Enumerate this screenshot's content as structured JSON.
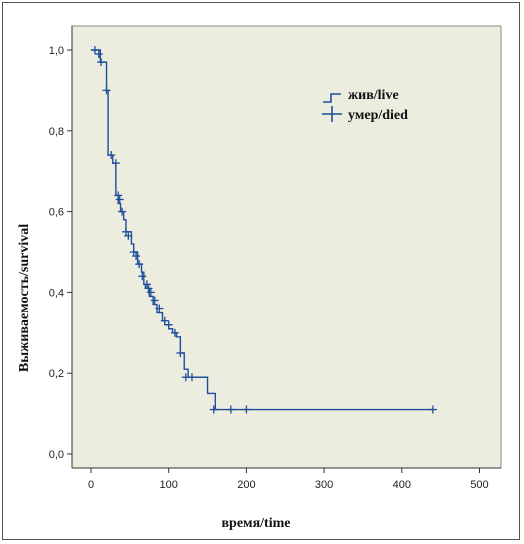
{
  "chart_data": {
    "type": "line",
    "subtype": "kaplan-meier",
    "xlabel": "время/time",
    "ylabel": "Выживаемость/survival",
    "xlim": [
      0,
      500
    ],
    "ylim": [
      0,
      1.0
    ],
    "x_ticks": [
      "0",
      "100",
      "200",
      "300",
      "400",
      "500"
    ],
    "x_tick_values": [
      0,
      100,
      200,
      300,
      400,
      500
    ],
    "y_ticks": [
      "0,0",
      "0,2",
      "0,4",
      "0,6",
      "0,8",
      "1,0"
    ],
    "y_tick_values": [
      0,
      0.2,
      0.4,
      0.6,
      0.8,
      1.0
    ],
    "grid": false,
    "legend_position": "top-right",
    "colors": {
      "series": "#1f4e9c",
      "plot_background": "#ececdf"
    },
    "series": [
      {
        "name": "жив/live",
        "role": "survival-step",
        "x": [
          0,
          10,
          12,
          20,
          22,
          28,
          32,
          35,
          38,
          42,
          45,
          52,
          55,
          60,
          65,
          68,
          70,
          75,
          80,
          85,
          92,
          95,
          100,
          105,
          110,
          115,
          120,
          125,
          130,
          150,
          160,
          440
        ],
        "y": [
          1.0,
          1.0,
          0.97,
          0.9,
          0.74,
          0.72,
          0.64,
          0.62,
          0.6,
          0.58,
          0.55,
          0.52,
          0.5,
          0.47,
          0.45,
          0.42,
          0.41,
          0.39,
          0.37,
          0.35,
          0.33,
          0.32,
          0.31,
          0.3,
          0.29,
          0.25,
          0.21,
          0.19,
          0.19,
          0.15,
          0.11,
          0.11
        ]
      },
      {
        "name": "умер/died",
        "role": "censored-marks",
        "x": [
          5,
          10,
          13,
          20,
          26,
          32,
          35,
          37,
          40,
          45,
          48,
          55,
          58,
          62,
          66,
          72,
          74,
          77,
          82,
          88,
          95,
          100,
          108,
          115,
          122,
          130,
          158,
          180,
          200,
          440
        ],
        "y": [
          1.0,
          0.99,
          0.97,
          0.9,
          0.74,
          0.72,
          0.64,
          0.63,
          0.6,
          0.55,
          0.54,
          0.5,
          0.49,
          0.47,
          0.44,
          0.42,
          0.41,
          0.4,
          0.38,
          0.36,
          0.33,
          0.32,
          0.3,
          0.25,
          0.19,
          0.19,
          0.11,
          0.11,
          0.11,
          0.11
        ]
      }
    ]
  }
}
